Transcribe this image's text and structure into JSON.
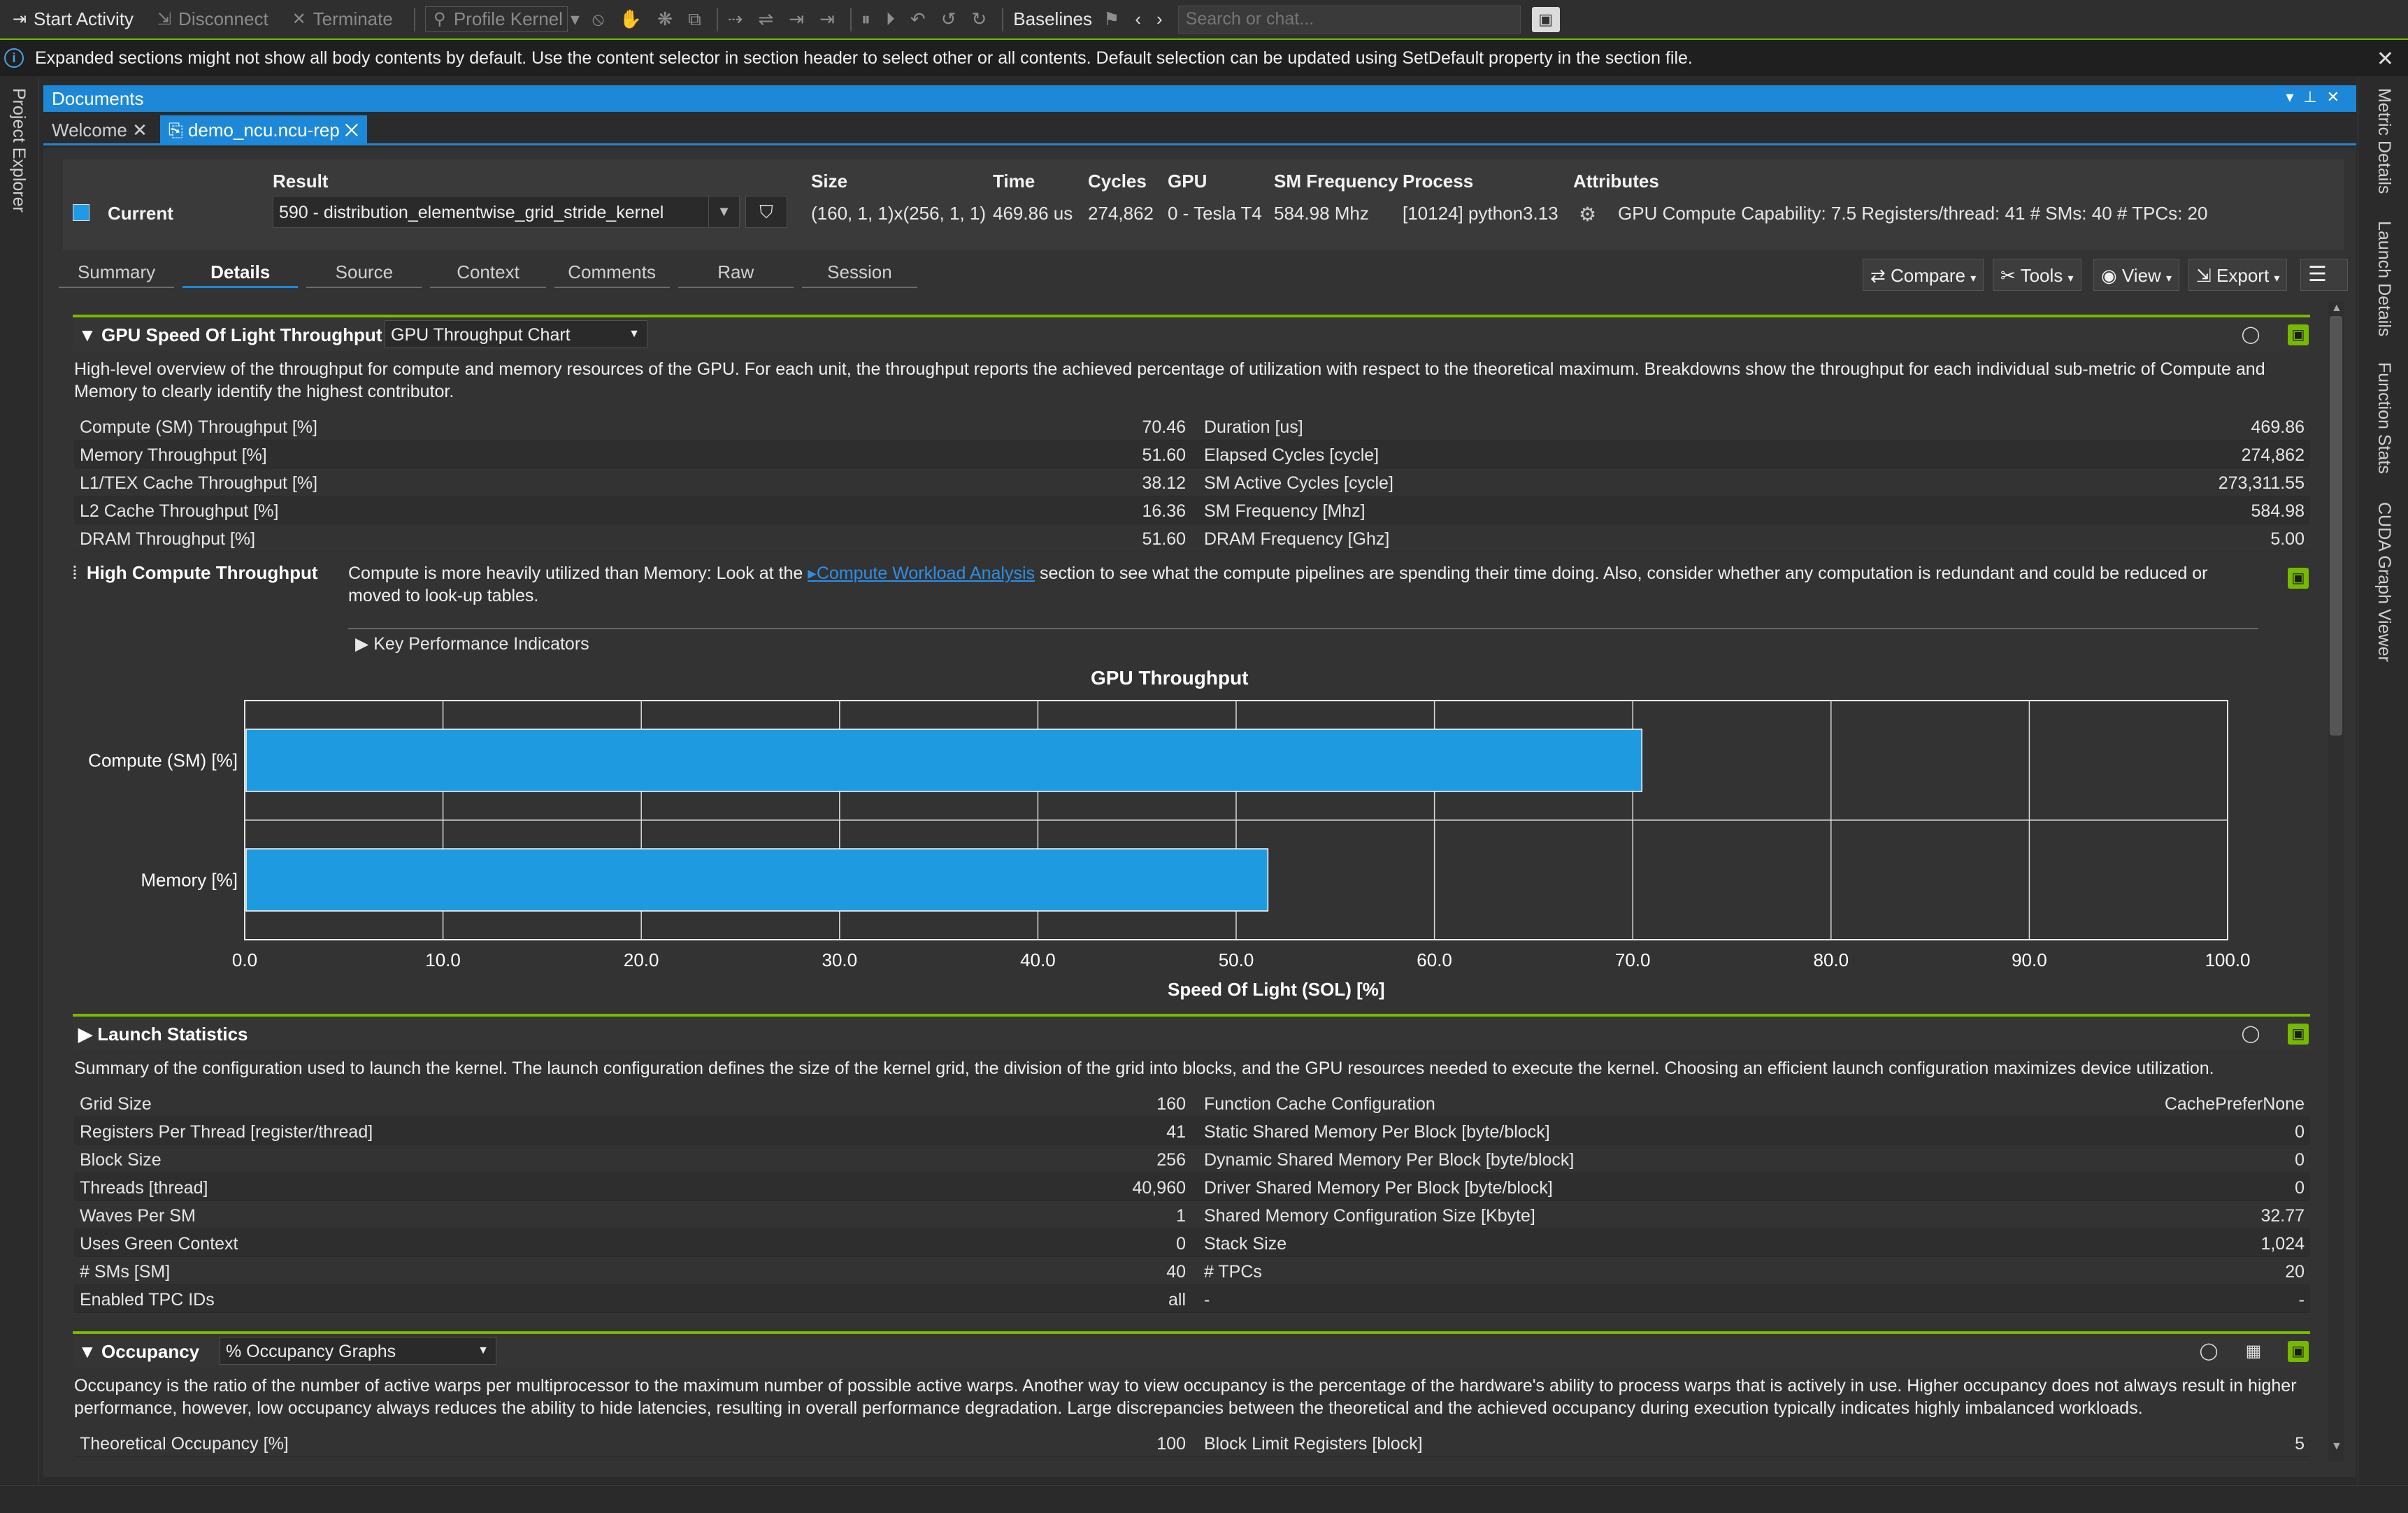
{
  "toolbar": {
    "start_activity": "Start Activity",
    "disconnect": "Disconnect",
    "terminate": "Terminate",
    "profile_kernel": "Profile Kernel",
    "baselines": "Baselines",
    "search_placeholder": "Search or chat..."
  },
  "infobar": {
    "message": "Expanded sections might not show all body contents by default. Use the content selector in section header to select other or all contents. Default selection can be updated using SetDefault property in the section file."
  },
  "left_rail": {
    "project_explorer": "Project Explorer"
  },
  "right_rail": {
    "metric_details": "Metric Details",
    "launch_details": "Launch Details",
    "function_stats": "Function Stats",
    "cuda_graph_viewer": "CUDA Graph Viewer"
  },
  "documents": {
    "title": "Documents",
    "tabs": [
      "Welcome",
      "demo_ncu.ncu-rep"
    ]
  },
  "result_header": {
    "labels": {
      "result": "Result",
      "size": "Size",
      "time": "Time",
      "cycles": "Cycles",
      "gpu": "GPU",
      "sm_frequency": "SM Frequency",
      "process": "Process",
      "attributes": "Attributes"
    },
    "current": "Current",
    "result_value": "590 - distribution_elementwise_grid_stride_kernel",
    "size": "(160, 1, 1)x(256, 1, 1)",
    "time": "469.86 us",
    "cycles": "274,862",
    "gpu": "0 - Tesla T4",
    "sm_frequency": "584.98 Mhz",
    "process": "[10124] python3.13",
    "attributes": "GPU Compute Capability: 7.5   Registers/thread: 41   # SMs: 40   # TPCs: 20"
  },
  "subtabs": [
    "Summary",
    "Details",
    "Source",
    "Context",
    "Comments",
    "Raw",
    "Session"
  ],
  "active_subtab": "Details",
  "actions": {
    "compare": "Compare",
    "tools": "Tools",
    "view": "View",
    "export": "Export"
  },
  "sol_section": {
    "title": "GPU Speed Of Light Throughput",
    "selector": "GPU Throughput Chart",
    "description": "High-level overview of the throughput for compute and memory resources of the GPU. For each unit, the throughput reports the achieved percentage of utilization with respect to the theoretical maximum. Breakdowns show the throughput for each individual sub-metric of Compute and Memory to clearly identify the highest contributor.",
    "rows": [
      {
        "l1": "Compute (SM) Throughput [%]",
        "v1": "70.46",
        "l2": "Duration [us]",
        "v2": "469.86"
      },
      {
        "l1": "Memory Throughput [%]",
        "v1": "51.60",
        "l2": "Elapsed Cycles [cycle]",
        "v2": "274,862"
      },
      {
        "l1": "L1/TEX Cache Throughput [%]",
        "v1": "38.12",
        "l2": "SM Active Cycles [cycle]",
        "v2": "273,311.55"
      },
      {
        "l1": "L2 Cache Throughput [%]",
        "v1": "16.36",
        "l2": "SM Frequency [Mhz]",
        "v2": "584.98"
      },
      {
        "l1": "DRAM Throughput [%]",
        "v1": "51.60",
        "l2": "DRAM Frequency [Ghz]",
        "v2": "5.00"
      }
    ],
    "rule_title": "High Compute Throughput",
    "rule_text_before": "Compute is more heavily utilized than Memory: Look at the ",
    "rule_link": "Compute Workload Analysis",
    "rule_text_after": " section to see what the compute pipelines are spending their time doing. Also, consider whether any computation is redundant and could be reduced or moved to look-up tables.",
    "kpi_label": "Key Performance Indicators"
  },
  "chart_data": {
    "type": "bar",
    "orientation": "horizontal",
    "title": "GPU Throughput",
    "xlabel": "Speed Of Light (SOL) [%]",
    "ylabel": "",
    "categories": [
      "Compute (SM) [%]",
      "Memory [%]"
    ],
    "values": [
      70.46,
      51.6
    ],
    "xlim": [
      0,
      100
    ],
    "xticks": [
      "0.0",
      "10.0",
      "20.0",
      "30.0",
      "40.0",
      "50.0",
      "60.0",
      "70.0",
      "80.0",
      "90.0",
      "100.0"
    ],
    "grid": true,
    "bar_color": "#1e9be0"
  },
  "launch_section": {
    "title": "Launch Statistics",
    "description": "Summary of the configuration used to launch the kernel. The launch configuration defines the size of the kernel grid, the division of the grid into blocks, and the GPU resources needed to execute the kernel. Choosing an efficient launch configuration maximizes device utilization.",
    "rows": [
      {
        "l1": "Grid Size",
        "v1": "160",
        "l2": "Function Cache Configuration",
        "v2": "CachePreferNone"
      },
      {
        "l1": "Registers Per Thread [register/thread]",
        "v1": "41",
        "l2": "Static Shared Memory Per Block [byte/block]",
        "v2": "0"
      },
      {
        "l1": "Block Size",
        "v1": "256",
        "l2": "Dynamic Shared Memory Per Block [byte/block]",
        "v2": "0"
      },
      {
        "l1": "Threads [thread]",
        "v1": "40,960",
        "l2": "Driver Shared Memory Per Block [byte/block]",
        "v2": "0"
      },
      {
        "l1": "Waves Per SM",
        "v1": "1",
        "l2": "Shared Memory Configuration Size [Kbyte]",
        "v2": "32.77"
      },
      {
        "l1": "Uses Green Context",
        "v1": "0",
        "l2": "Stack Size",
        "v2": "1,024"
      },
      {
        "l1": "# SMs [SM]",
        "v1": "40",
        "l2": "# TPCs",
        "v2": "20"
      },
      {
        "l1": "Enabled TPC IDs",
        "v1": "all",
        "l2": "-",
        "v2": "-"
      }
    ]
  },
  "occupancy_section": {
    "title": "Occupancy",
    "selector": "% Occupancy Graphs",
    "description": "Occupancy is the ratio of the number of active warps per multiprocessor to the maximum number of possible active warps. Another way to view occupancy is the percentage of the hardware's ability to process warps that is actively in use. Higher occupancy does not always result in higher performance, however, low occupancy always reduces the ability to hide latencies, resulting in overall performance degradation. Large discrepancies between the theoretical and the achieved occupancy during execution typically indicates highly imbalanced workloads.",
    "rows": [
      {
        "l1": "Theoretical Occupancy [%]",
        "v1": "100",
        "l2": "Block Limit Registers [block]",
        "v2": "5"
      }
    ]
  },
  "colors": {
    "accent_blue": "#1e88d8",
    "nvidia_green": "#76b900",
    "bar_blue": "#1e9be0"
  }
}
